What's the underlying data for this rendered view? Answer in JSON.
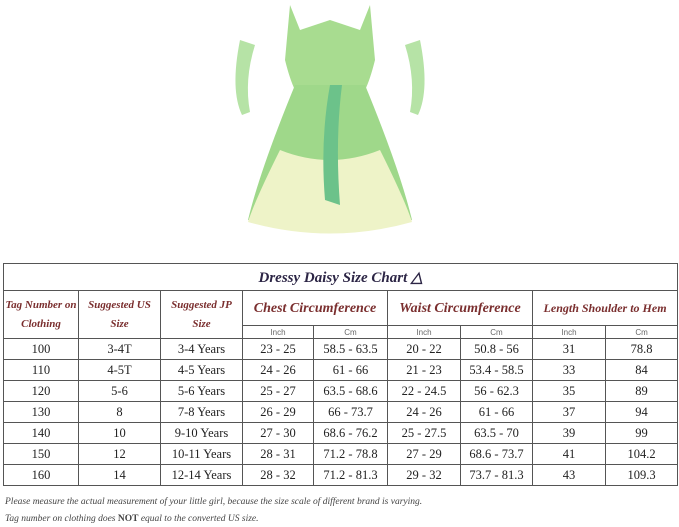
{
  "chart_title": "Dressy Daisy Size Chart",
  "headers": {
    "tag": "Tag Number on Clothing",
    "us": "Suggested US Size",
    "jp": "Suggested JP Size",
    "chest": "Chest Circumference",
    "waist": "Waist Circumference",
    "length": "Length Shoulder to Hem",
    "inch": "Inch",
    "cm": "Cm"
  },
  "rows": [
    [
      "100",
      "3-4T",
      "3-4 Years",
      "23 - 25",
      "58.5 - 63.5",
      "20 - 22",
      "50.8 - 56",
      "31",
      "78.8"
    ],
    [
      "110",
      "4-5T",
      "4-5 Years",
      "24 - 26",
      "61 - 66",
      "21 - 23",
      "53.4 - 58.5",
      "33",
      "84"
    ],
    [
      "120",
      "5-6",
      "5-6 Years",
      "25 - 27",
      "63.5 - 68.6",
      "22 - 24.5",
      "56 - 62.3",
      "35",
      "89"
    ],
    [
      "130",
      "8",
      "7-8 Years",
      "26 - 29",
      "66 - 73.7",
      "24 - 26",
      "61 - 66",
      "37",
      "94"
    ],
    [
      "140",
      "10",
      "9-10 Years",
      "27 - 30",
      "68.6 - 76.2",
      "25 - 27.5",
      "63.5 - 70",
      "39",
      "99"
    ],
    [
      "150",
      "12",
      "10-11 Years",
      "28 - 31",
      "71.2 - 78.8",
      "27 - 29",
      "68.6 - 73.7",
      "41",
      "104.2"
    ],
    [
      "160",
      "14",
      "12-14 Years",
      "28 - 32",
      "71.2 - 81.3",
      "29 - 32",
      "73.7 - 81.3",
      "43",
      "109.3"
    ]
  ],
  "notes": {
    "line1": "Please measure the actual measurement of your little girl, because the size scale of different brand is varying.",
    "line2_pre": "Tag number on clothing does ",
    "line2_bold": "NOT",
    "line2_post": " equal to the converted US size."
  },
  "colors": {
    "header_text": "#7a2e2e",
    "title_text": "#2c2545",
    "dress": "#9fd88a"
  }
}
